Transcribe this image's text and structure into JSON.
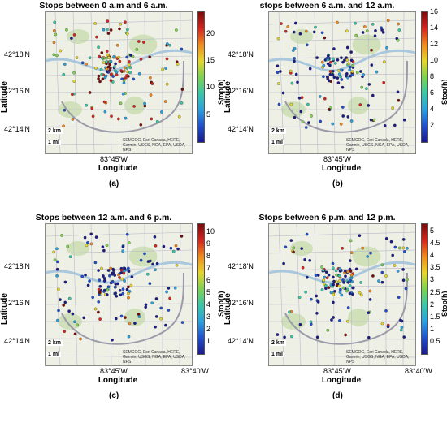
{
  "colors": {
    "colormap": [
      "#1a1a8c",
      "#1f4fd0",
      "#2aa0e0",
      "#38c8a8",
      "#7ed250",
      "#e7d62a",
      "#f08a1c",
      "#d8231e",
      "#7a0b0b"
    ],
    "map_bg": "#eef0e6",
    "road": "#b9b9c8",
    "water": "#a9c8de",
    "park": "#c8dcae"
  },
  "chart_data": [
    {
      "type": "scatter",
      "title": "Stops between 0 a.m and 6 a.m.",
      "ylabel": "Latitude",
      "xlabel": "Longitude",
      "colorbar_label": "Stop(h)",
      "colorbar_range": [
        0,
        24
      ],
      "colorbar_ticks": [
        "5",
        "10",
        "15",
        "20"
      ],
      "y_ticks": [
        "42°18'N",
        "42°16'N",
        "42°14'N"
      ],
      "x_ticks": [
        "83°45'W"
      ],
      "caption": "(a)",
      "scale": [
        "2 km",
        "1 mi"
      ],
      "attribution": "SEMCOG, Esri Canada, HERE, Garmin, USGS, NGA, EPA, USDA, NPS"
    },
    {
      "type": "scatter",
      "title": "stops between 6 a.m. and 12 a.m.",
      "ylabel": "Latitude",
      "xlabel": "Longitude",
      "colorbar_label": "Stop(h)",
      "colorbar_range": [
        0,
        16
      ],
      "colorbar_ticks": [
        "2",
        "4",
        "6",
        "8",
        "10",
        "12",
        "14",
        "16"
      ],
      "y_ticks": [
        "42°18'N",
        "42°16'N",
        "42°14'N"
      ],
      "x_ticks": [
        "83°45'W"
      ],
      "caption": "(b)",
      "scale": [
        "2 km",
        "1 mi"
      ],
      "attribution": "SEMCOG, Esri Canada, HERE, Garmin, USGS, NGA, EPA, USDA, NPS"
    },
    {
      "type": "scatter",
      "title": "Stops between 12 a.m. and 6 p.m.",
      "ylabel": "Latitude",
      "xlabel": "Longitude",
      "colorbar_label": "Stop(h)",
      "colorbar_range": [
        0,
        10.7
      ],
      "colorbar_ticks": [
        "1",
        "2",
        "3",
        "4",
        "5",
        "6",
        "7",
        "8",
        "9",
        "10"
      ],
      "y_ticks": [
        "42°18'N",
        "42°16'N",
        "42°14'N"
      ],
      "x_ticks": [
        "83°45'W",
        "83°40'W"
      ],
      "caption": "(c)",
      "scale": [
        "2 km",
        "1 mi"
      ],
      "attribution": "SEMCOG, Esri Canada, HERE, Garmin, USGS, NGA, EPA, USDA, NPS"
    },
    {
      "type": "scatter",
      "title": "Stops between 6 p.m. and 12 p.m.",
      "ylabel": "Latitude",
      "xlabel": "Longitude",
      "colorbar_label": "Stop(h)",
      "colorbar_range": [
        0,
        5.3
      ],
      "colorbar_ticks": [
        "0.5",
        "1",
        "1.5",
        "2",
        "2.5",
        "3",
        "3.5",
        "4",
        "4.5",
        "5"
      ],
      "y_ticks": [
        "42°18'N",
        "42°16'N",
        "42°14'N"
      ],
      "x_ticks": [
        "83°45'W",
        "83°40'W"
      ],
      "caption": "(d)",
      "scale": [
        "2 km",
        "1 mi"
      ],
      "attribution": "SEMCOG, Esri Canada, HERE, Garmin, USGS, NGA, EPA, USDA, NPS"
    }
  ]
}
